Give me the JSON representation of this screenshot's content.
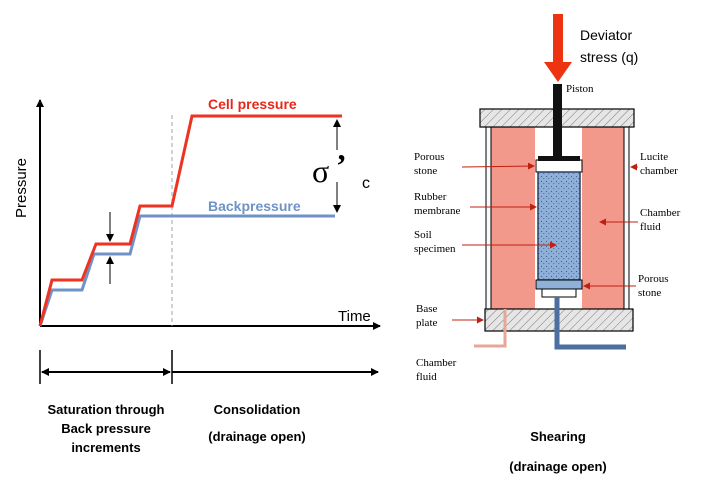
{
  "colors": {
    "cell": "#ee3322",
    "back": "#6f93c7",
    "chamber": "#f2998c",
    "specimen": "#8fb0d9",
    "arrow": "#ee3311",
    "pipe": "#4a6fa0",
    "hatch": "#cfcfcf"
  },
  "left": {
    "y_axis_label": "Pressure",
    "x_axis_label": "Time",
    "cell_label": "Cell pressure",
    "back_label": "Backpressure",
    "sigma_symbol": "σ",
    "sigma_prime": "’",
    "sigma_subscript": "c",
    "stage1": [
      "Saturation through",
      "Back pressure",
      "increments"
    ],
    "stage2": [
      "Consolidation",
      "(drainage open)"
    ]
  },
  "right": {
    "deviator": [
      "Deviator",
      "stress (q)"
    ],
    "piston": "Piston",
    "porous_top": [
      "Porous",
      "stone"
    ],
    "rubber": [
      "Rubber",
      "membrane"
    ],
    "soil": [
      "Soil",
      "specimen"
    ],
    "lucite": [
      "Lucite",
      "chamber"
    ],
    "chamber_fluid_right": [
      "Chamber",
      "fluid"
    ],
    "porous_bottom": [
      "Porous",
      "stone"
    ],
    "base_plate": [
      "Base",
      "plate"
    ],
    "chamber_fluid_left": [
      "Chamber",
      "fluid"
    ],
    "caption": [
      "Shearing",
      "(drainage open)"
    ]
  }
}
